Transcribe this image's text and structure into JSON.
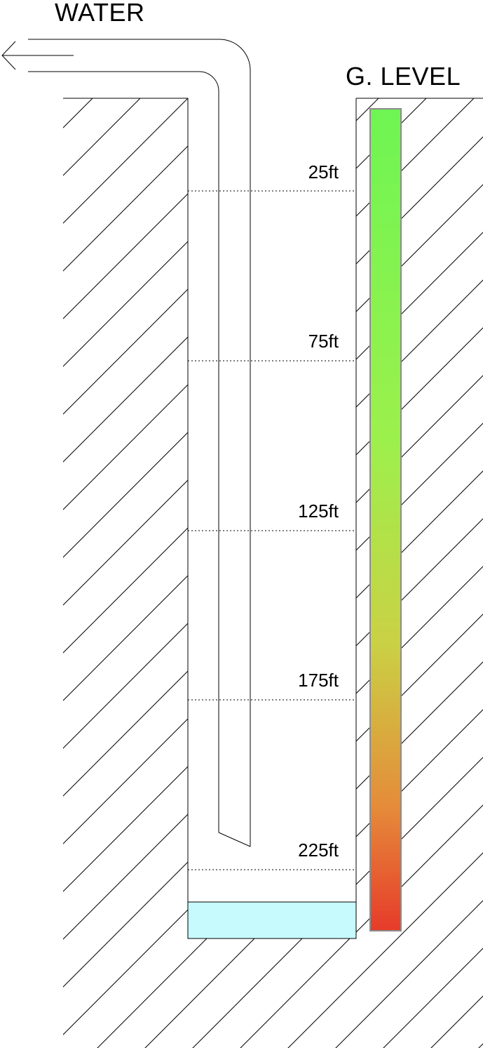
{
  "labels": {
    "water": "WATER",
    "ground_level": "G. LEVEL"
  },
  "depth_markers": [
    {
      "label": "25ft"
    },
    {
      "label": "75ft"
    },
    {
      "label": "125ft"
    },
    {
      "label": "175ft"
    },
    {
      "label": "225ft"
    }
  ],
  "colors": {
    "hatch": "#000000",
    "water_pool": "#c6fafd",
    "gauge_top": "#6ef553",
    "gauge_upper": "#9cf04c",
    "gauge_middle": "#cad144",
    "gauge_lower": "#e58b3a",
    "gauge_bottom": "#e63b2a",
    "gauge_border": "#8c8c8c"
  },
  "icons": {
    "outflow": "arrow-left-icon"
  }
}
